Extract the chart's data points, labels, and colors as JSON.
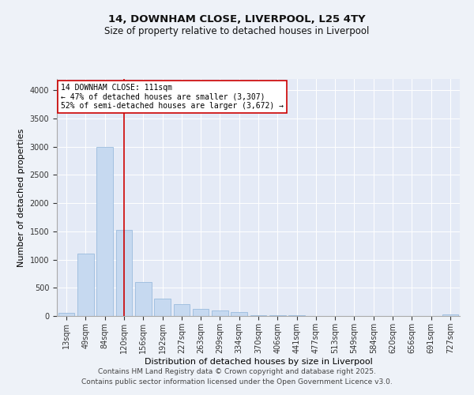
{
  "title_line1": "14, DOWNHAM CLOSE, LIVERPOOL, L25 4TY",
  "title_line2": "Size of property relative to detached houses in Liverpool",
  "xlabel": "Distribution of detached houses by size in Liverpool",
  "ylabel": "Number of detached properties",
  "categories": [
    "13sqm",
    "49sqm",
    "84sqm",
    "120sqm",
    "156sqm",
    "192sqm",
    "227sqm",
    "263sqm",
    "299sqm",
    "334sqm",
    "370sqm",
    "406sqm",
    "441sqm",
    "477sqm",
    "513sqm",
    "549sqm",
    "584sqm",
    "620sqm",
    "656sqm",
    "691sqm",
    "727sqm"
  ],
  "values": [
    55,
    1100,
    3000,
    1530,
    600,
    310,
    210,
    130,
    100,
    65,
    20,
    12,
    8,
    4,
    3,
    2,
    2,
    1,
    1,
    1,
    30
  ],
  "bar_color": "#c6d9f0",
  "bar_edgecolor": "#8fb4d9",
  "vline_x": 3,
  "vline_color": "#cc0000",
  "annotation_text": "14 DOWNHAM CLOSE: 111sqm\n← 47% of detached houses are smaller (3,307)\n52% of semi-detached houses are larger (3,672) →",
  "annotation_box_edgecolor": "#cc0000",
  "annotation_box_facecolor": "#ffffff",
  "ylim": [
    0,
    4200
  ],
  "yticks": [
    0,
    500,
    1000,
    1500,
    2000,
    2500,
    3000,
    3500,
    4000
  ],
  "footer_line1": "Contains HM Land Registry data © Crown copyright and database right 2025.",
  "footer_line2": "Contains public sector information licensed under the Open Government Licence v3.0.",
  "background_color": "#eef2f8",
  "plot_bg_color": "#e4eaf6",
  "title_fontsize": 9.5,
  "subtitle_fontsize": 8.5,
  "axis_label_fontsize": 8,
  "tick_fontsize": 7,
  "annotation_fontsize": 7,
  "footer_fontsize": 6.5
}
